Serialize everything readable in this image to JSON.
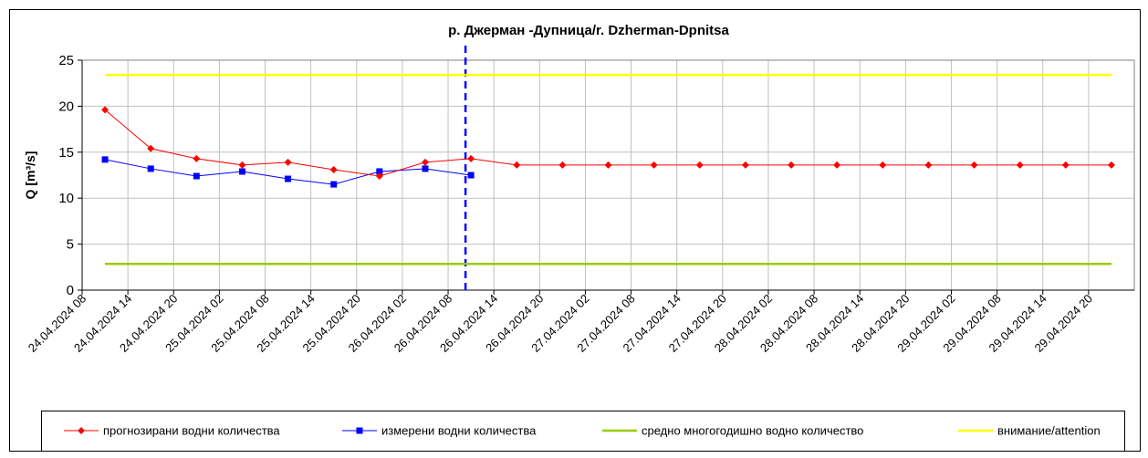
{
  "chart_data": {
    "type": "line",
    "title": "р. Джерман -Дупница/r. Dzherman-Dpnitsa",
    "y_label": "Q [m³/s]",
    "categories": [
      "24.04.2024 08",
      "24.04.2024 14",
      "24.04.2024 20",
      "25.04.2024 02",
      "25.04.2024 08",
      "25.04.2024 14",
      "25.04.2024 20",
      "26.04.2024 02",
      "26.04.2024 08",
      "26.04.2024 14",
      "26.04.2024 20",
      "27.04.2024 02",
      "27.04.2024 08",
      "27.04.2024 14",
      "27.04.2024 20",
      "28.04.2024 02",
      "28.04.2024 08",
      "28.04.2024 14",
      "28.04.2024 20",
      "29.04.2024 02",
      "29.04.2024 08",
      "29.04.2024 14",
      "29.04.2024 20"
    ],
    "series": [
      {
        "name": "прогнозирани водни количества",
        "color": "#ff0000",
        "marker": "diamond",
        "values": [
          19.6,
          15.4,
          14.3,
          13.6,
          13.9,
          13.1,
          12.4,
          13.9,
          14.3,
          13.6,
          13.6,
          13.6,
          13.6,
          13.6,
          13.6,
          13.6,
          13.6,
          13.6,
          13.6,
          13.6,
          13.6,
          13.6,
          13.6
        ]
      },
      {
        "name": "измерени водни количества",
        "color": "#0000ff",
        "marker": "square",
        "values": [
          14.2,
          13.2,
          12.4,
          12.9,
          12.1,
          11.5,
          12.9,
          13.2,
          12.5,
          null,
          null,
          null,
          null,
          null,
          null,
          null,
          null,
          null,
          null,
          null,
          null,
          null,
          null
        ]
      },
      {
        "name": "средно многогодишно водно количество",
        "color": "#99cc00",
        "marker": "none",
        "values": [
          2.85,
          2.85,
          2.85,
          2.85,
          2.85,
          2.85,
          2.85,
          2.85,
          2.85,
          2.85,
          2.85,
          2.85,
          2.85,
          2.85,
          2.85,
          2.85,
          2.85,
          2.85,
          2.85,
          2.85,
          2.85,
          2.85,
          2.85
        ]
      },
      {
        "name": "внимание/attention",
        "color": "#ffff00",
        "marker": "none",
        "values": [
          23.4,
          23.4,
          23.4,
          23.4,
          23.4,
          23.4,
          23.4,
          23.4,
          23.4,
          23.4,
          23.4,
          23.4,
          23.4,
          23.4,
          23.4,
          23.4,
          23.4,
          23.4,
          23.4,
          23.4,
          23.4,
          23.4,
          23.4
        ]
      }
    ],
    "ylim": [
      0,
      25
    ],
    "yticks": [
      0,
      5,
      10,
      15,
      20,
      25
    ],
    "grid": true,
    "legend": "bottom"
  }
}
